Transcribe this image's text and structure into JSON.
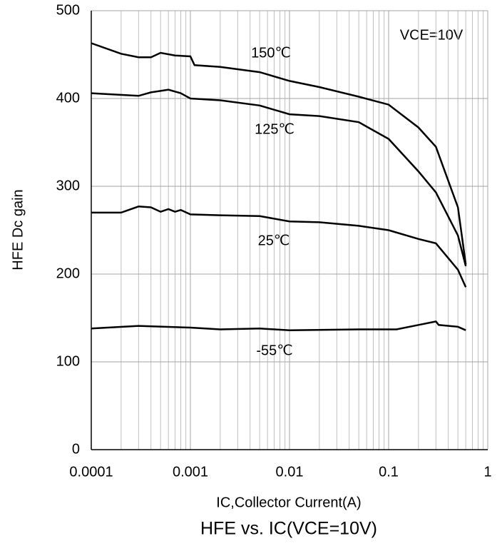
{
  "chart_data": {
    "type": "line",
    "title": "HFE vs. IC(VCE=10V)",
    "xlabel": "IC,Collector Current(A)",
    "ylabel": "HFE Dc gain",
    "annotations": [
      "VCE=10V"
    ],
    "xscale": "log",
    "xlim": [
      0.0001,
      1
    ],
    "xticks": [
      0.0001,
      0.001,
      0.01,
      0.1,
      1
    ],
    "xminorticks": [
      0.0002,
      0.0003,
      0.0004,
      0.0005,
      0.0006,
      0.0007,
      0.0008,
      0.0009,
      0.002,
      0.003,
      0.004,
      0.005,
      0.006,
      0.007,
      0.008,
      0.009,
      0.02,
      0.03,
      0.04,
      0.05,
      0.06,
      0.07,
      0.08,
      0.09,
      0.2,
      0.3,
      0.4,
      0.5,
      0.6,
      0.7,
      0.8,
      0.9
    ],
    "ylim": [
      0,
      500
    ],
    "yticks": [
      0,
      100,
      200,
      300,
      400,
      500
    ],
    "grid": true,
    "series": [
      {
        "name": "150℃",
        "color": "#000000",
        "x": [
          0.0001,
          0.0002,
          0.0003,
          0.0004,
          0.0005,
          0.0007,
          0.001,
          0.0011,
          0.002,
          0.005,
          0.01,
          0.02,
          0.05,
          0.1,
          0.2,
          0.3,
          0.5,
          0.6
        ],
        "values": [
          463,
          451,
          447,
          447,
          452,
          449,
          448,
          438,
          436,
          430,
          420,
          413,
          402,
          393,
          367,
          345,
          276,
          211
        ]
      },
      {
        "name": "125℃",
        "color": "#000000",
        "x": [
          0.0001,
          0.0003,
          0.0004,
          0.0006,
          0.0008,
          0.001,
          0.002,
          0.005,
          0.01,
          0.02,
          0.05,
          0.1,
          0.2,
          0.3,
          0.5,
          0.6
        ],
        "values": [
          406,
          403,
          407,
          410,
          406,
          400,
          398,
          392,
          382,
          380,
          373,
          354,
          317,
          293,
          244,
          209
        ]
      },
      {
        "name": "25℃",
        "color": "#000000",
        "x": [
          0.0001,
          0.0002,
          0.0003,
          0.0004,
          0.0005,
          0.0006,
          0.0007,
          0.0008,
          0.001,
          0.002,
          0.005,
          0.01,
          0.02,
          0.05,
          0.1,
          0.2,
          0.3,
          0.5,
          0.6
        ],
        "values": [
          270,
          270,
          277,
          276,
          271,
          274,
          271,
          273,
          268,
          267,
          266,
          260,
          259,
          255,
          250,
          240,
          235,
          205,
          185
        ]
      },
      {
        "name": "-55℃",
        "color": "#000000",
        "x": [
          0.0001,
          0.0003,
          0.001,
          0.002,
          0.005,
          0.01,
          0.05,
          0.1,
          0.12,
          0.2,
          0.3,
          0.32,
          0.5,
          0.6
        ],
        "values": [
          138,
          141,
          139,
          137,
          138,
          136,
          137,
          137,
          137,
          142,
          146,
          142,
          140,
          136
        ]
      }
    ]
  }
}
